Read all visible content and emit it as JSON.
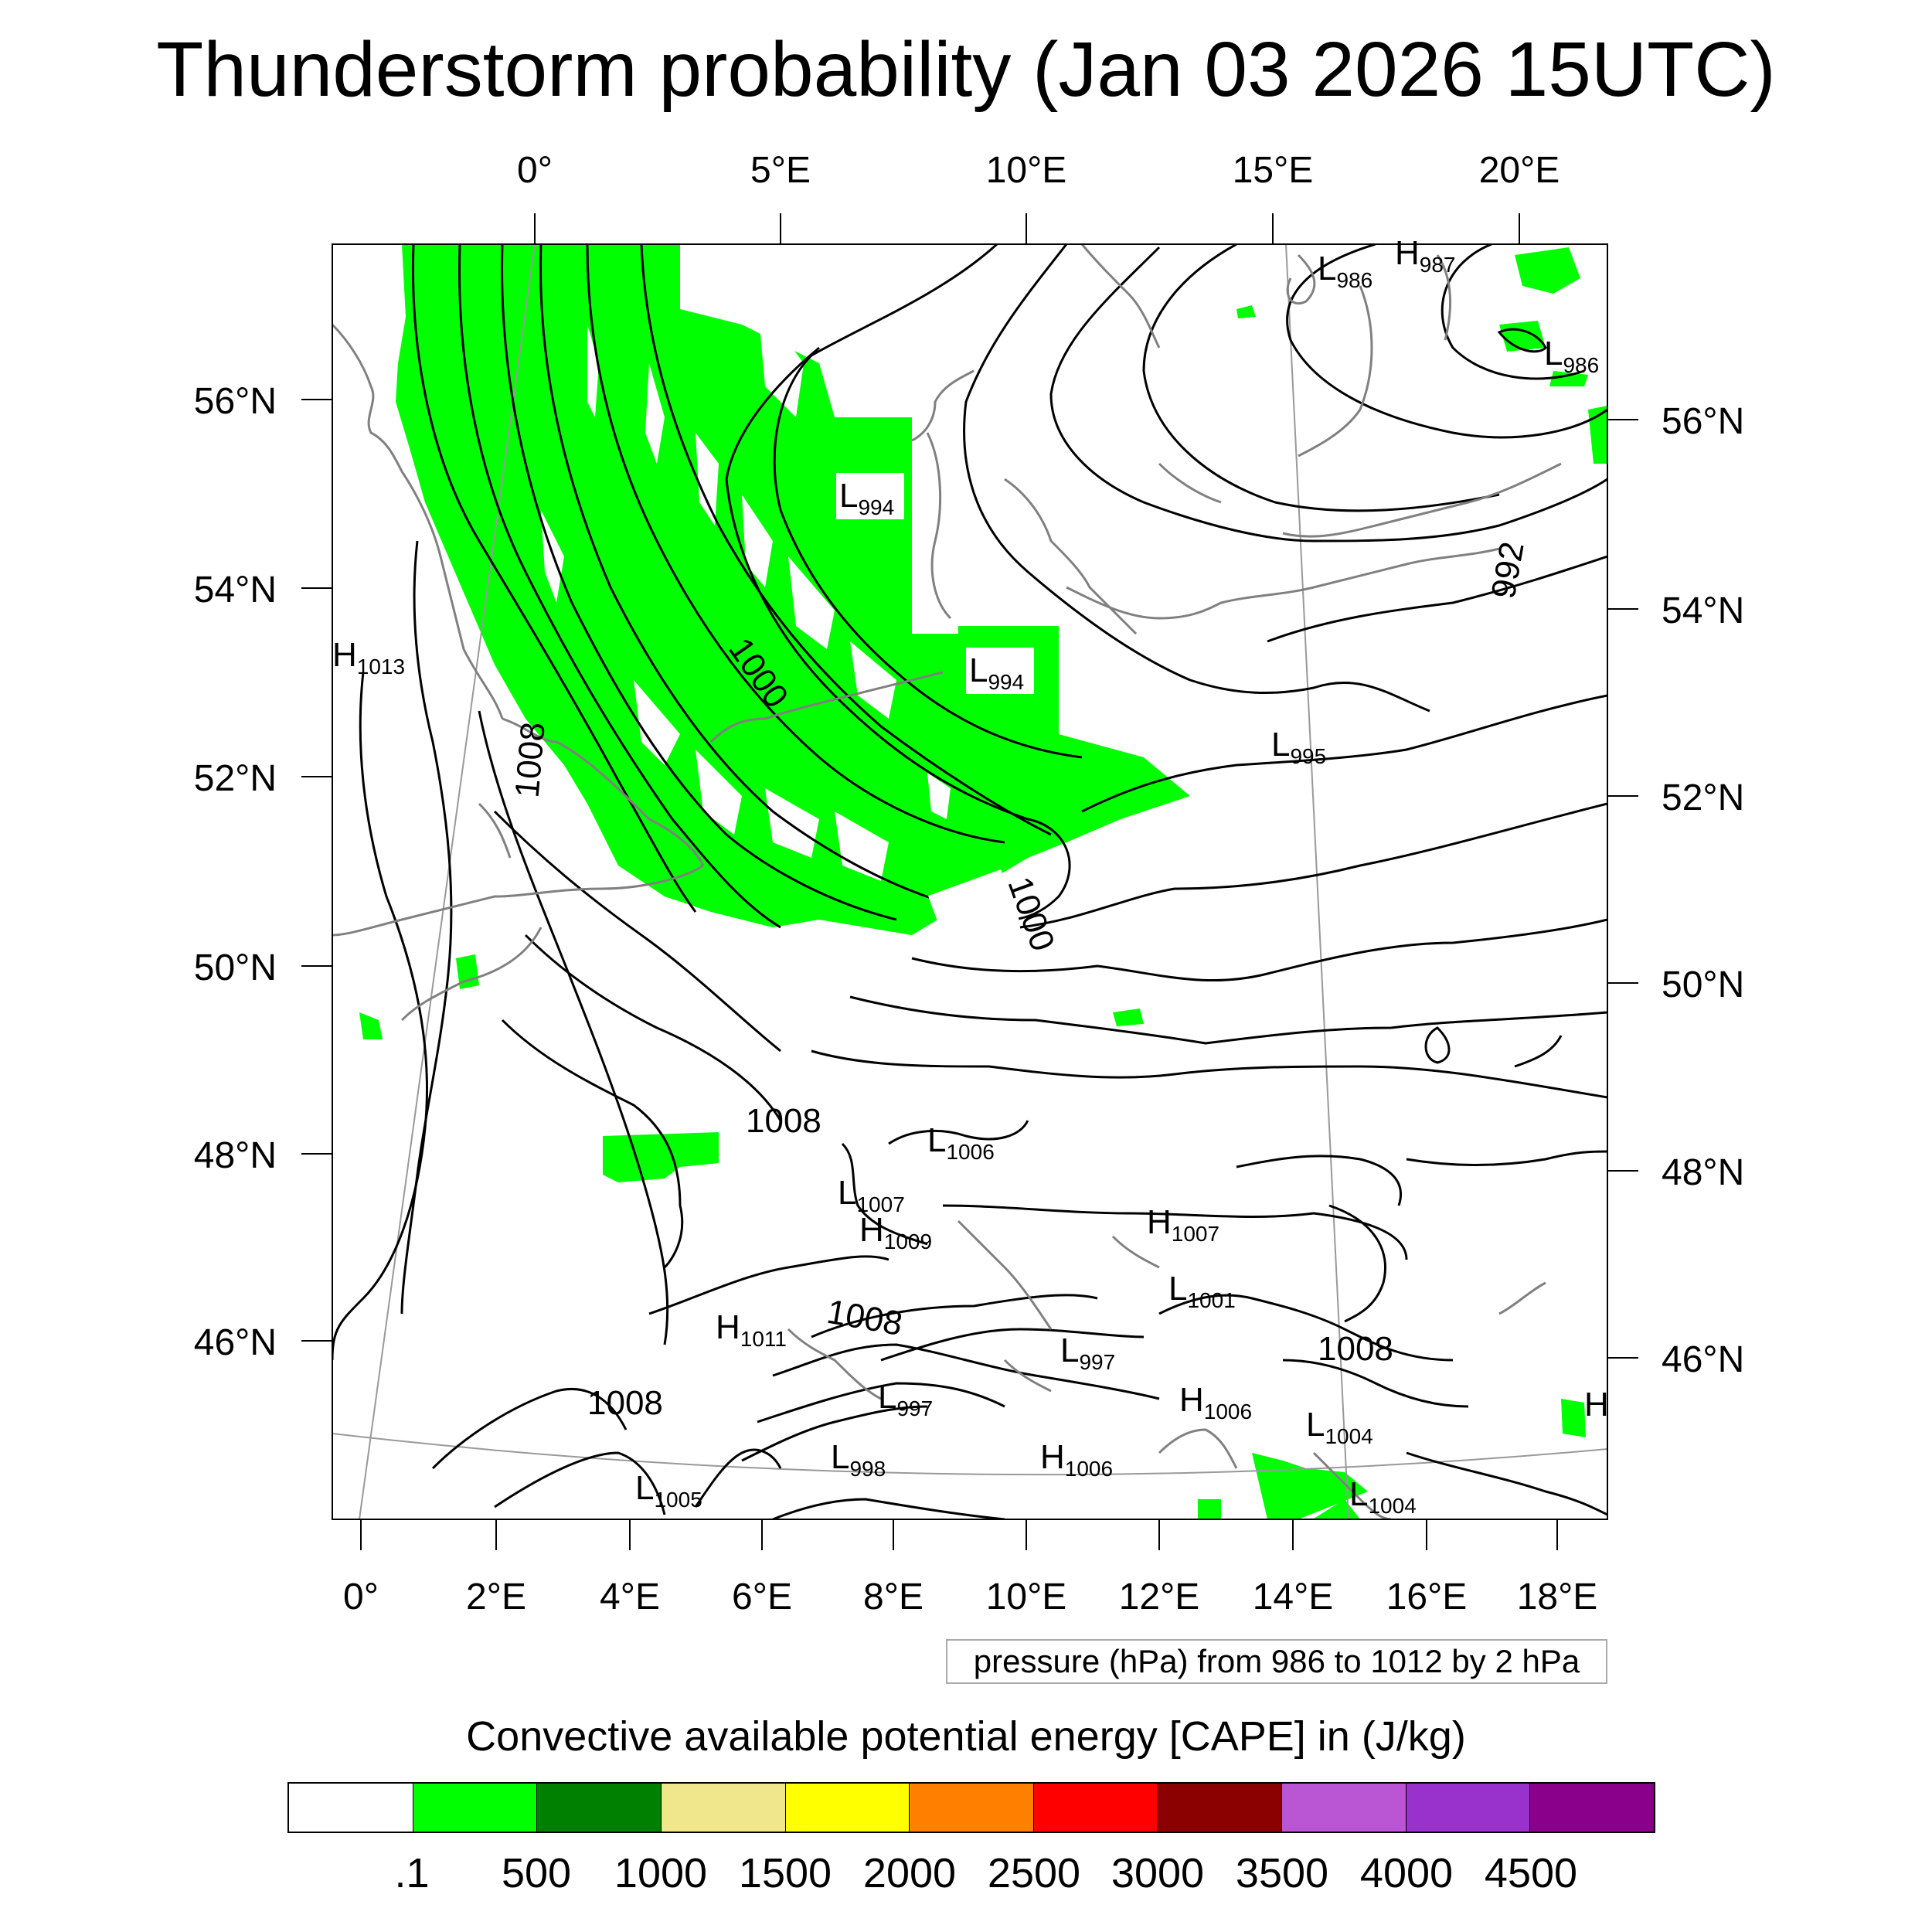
{
  "title": "Thunderstorm probability (Jan 03 2026 15UTC)",
  "top_lon_labels": [
    "0°",
    "5°E",
    "10°E",
    "15°E",
    "20°E"
  ],
  "left_lat_labels": [
    "56°N",
    "54°N",
    "52°N",
    "50°N",
    "48°N",
    "46°N"
  ],
  "right_lat_labels": [
    "56°N",
    "54°N",
    "52°N",
    "50°N",
    "48°N",
    "46°N"
  ],
  "bottom_lon_labels": [
    "0°",
    "2°E",
    "4°E",
    "6°E",
    "8°E",
    "10°E",
    "12°E",
    "14°E",
    "16°E",
    "18°E"
  ],
  "pressure_centers": [
    {
      "type": "H",
      "value": "987"
    },
    {
      "type": "L",
      "value": "986"
    },
    {
      "type": "L",
      "value": "986"
    },
    {
      "type": "L",
      "value": "994"
    },
    {
      "type": "L",
      "value": "994"
    },
    {
      "type": "H",
      "value": "1013"
    },
    {
      "type": "L",
      "value": "995"
    },
    {
      "type": "L",
      "value": "1006"
    },
    {
      "type": "L",
      "value": "1007"
    },
    {
      "type": "H",
      "value": "1009"
    },
    {
      "type": "H",
      "value": "1007"
    },
    {
      "type": "L",
      "value": "1001"
    },
    {
      "type": "H",
      "value": "1011"
    },
    {
      "type": "L",
      "value": "997"
    },
    {
      "type": "L",
      "value": "997"
    },
    {
      "type": "H",
      "value": "1006"
    },
    {
      "type": "H",
      "value": "1006"
    },
    {
      "type": "L",
      "value": "1004"
    },
    {
      "type": "L",
      "value": "998"
    },
    {
      "type": "L",
      "value": "1005"
    },
    {
      "type": "L",
      "value": "1004"
    },
    {
      "type": "H",
      "value": ""
    }
  ],
  "isobar_labels": [
    "1000",
    "1000",
    "1008",
    "992",
    "1008",
    "1008",
    "1008",
    "1008"
  ],
  "pressure_note": "pressure (hPa) from 986 to 1012 by 2 hPa",
  "colorbar": {
    "title": "Convective available potential energy [CAPE] in (J/kg)",
    "labels": [
      ".1",
      "500",
      "1000",
      "1500",
      "2000",
      "2500",
      "3000",
      "3500",
      "4000",
      "4500"
    ],
    "colors": [
      "#ffffff",
      "#00ff00",
      "#008000",
      "#f0e68c",
      "#ffff00",
      "#ff8000",
      "#ff0000",
      "#8b0000",
      "#ba55d3",
      "#9932cc",
      "#8b008b"
    ]
  },
  "colors": {
    "cape_area": "#00ff00",
    "isobar": "#000000",
    "coastline": "#808080",
    "graticule": "#999999"
  }
}
